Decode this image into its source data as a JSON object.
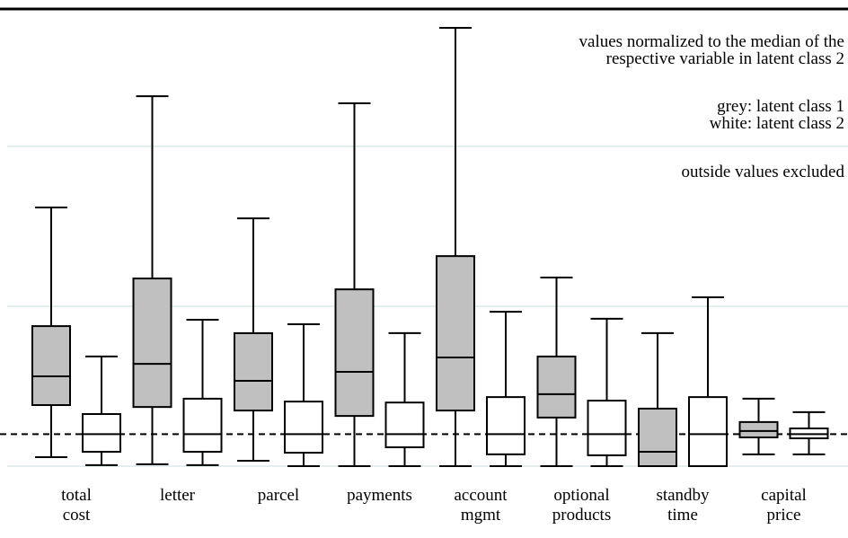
{
  "chart_data": {
    "type": "box",
    "categories": [
      "total cost",
      "letter",
      "parcel",
      "payments",
      "account mgmt",
      "optional products",
      "standby time",
      "capital price"
    ],
    "series": [
      {
        "color": "#c0c0c0",
        "lo": [
          0.28,
          0.06,
          0.17,
          0,
          0,
          0,
          0,
          0.37
        ],
        "q1": [
          1.91,
          1.85,
          1.74,
          1.57,
          1.74,
          1.52,
          0,
          0.9
        ],
        "median": [
          2.81,
          3.2,
          2.67,
          2.95,
          3.4,
          2.25,
          0.45,
          1.1
        ],
        "q3": [
          4.38,
          5.87,
          4.16,
          5.53,
          6.57,
          3.43,
          1.8,
          1.38
        ],
        "hi": [
          8.09,
          11.57,
          7.75,
          11.35,
          13.71,
          5.9,
          4.16,
          2.11
        ]
      },
      {
        "color": "#ffffff",
        "lo": [
          0.03,
          0.03,
          0,
          0,
          0,
          0,
          0,
          0.37
        ],
        "q1": [
          0.45,
          0.45,
          0.42,
          0.59,
          0.37,
          0.34,
          0,
          0.87
        ],
        "median": [
          1,
          1,
          1,
          1,
          1,
          1,
          1,
          1
        ],
        "q3": [
          1.63,
          2.11,
          2.02,
          1.99,
          2.16,
          2.05,
          2.16,
          1.18
        ],
        "hi": [
          3.43,
          4.58,
          4.44,
          4.16,
          4.83,
          4.61,
          5.28,
          1.69
        ]
      }
    ],
    "ylim": [
      0,
      14.3
    ],
    "grid_lines": [
      0,
      5,
      10
    ],
    "reference_line": 1,
    "annotations": [
      [
        "values normalized to the median of the",
        "respective variable in latent class 2"
      ],
      [
        "grey: latent class 1",
        "white: latent class 2"
      ],
      [
        "outside values excluded"
      ]
    ]
  }
}
